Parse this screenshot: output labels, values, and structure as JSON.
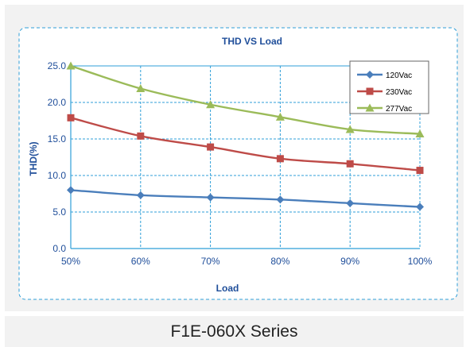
{
  "caption": "F1E-060X Series",
  "chart_data": {
    "type": "line",
    "title": "THD VS  Load",
    "xlabel": "Load",
    "ylabel": "THD(%)",
    "categories": [
      "50%",
      "60%",
      "70%",
      "80%",
      "90%",
      "100%"
    ],
    "ylim": [
      0,
      25
    ],
    "yticks": [
      "0.0",
      "5.0",
      "10.0",
      "15.0",
      "20.0",
      "25.0"
    ],
    "grid": true,
    "legend_position": "top-right",
    "series": [
      {
        "name": "120Vac",
        "marker": "diamond",
        "color": "#4a7ebb",
        "values": [
          8.0,
          7.3,
          7.0,
          6.7,
          6.2,
          5.7
        ]
      },
      {
        "name": "230Vac",
        "marker": "square",
        "color": "#be4b48",
        "values": [
          17.9,
          15.4,
          13.9,
          12.3,
          11.6,
          10.7
        ]
      },
      {
        "name": "277Vac",
        "marker": "triangle",
        "color": "#9bbb59",
        "values": [
          25.0,
          21.9,
          19.7,
          18.0,
          16.3,
          15.7
        ]
      }
    ]
  }
}
